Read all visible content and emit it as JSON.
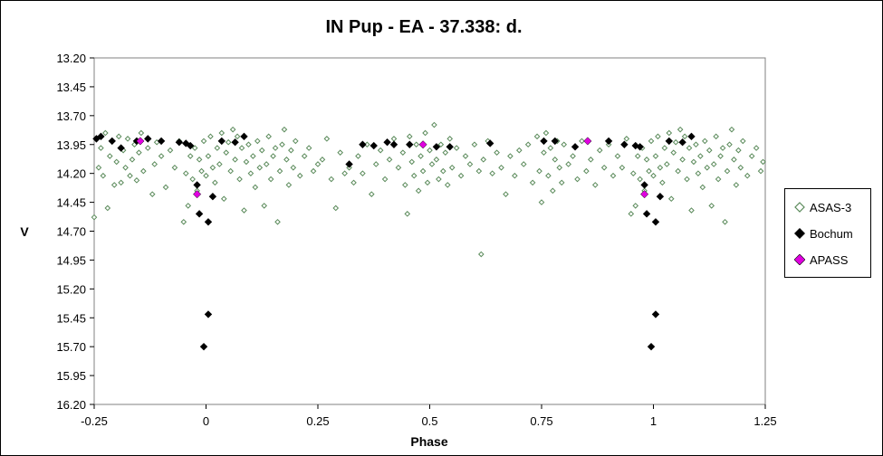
{
  "chart_data": {
    "type": "scatter",
    "title": "IN Pup - EA - 37.338: d.",
    "xlabel": "Phase",
    "ylabel": "V",
    "xlim": [
      -0.25,
      1.25
    ],
    "ylim": [
      16.2,
      13.2
    ],
    "y_inverted": true,
    "x_ticks": [
      "-0.25",
      "0",
      "0.25",
      "0.5",
      "0.75",
      "1",
      "1.25"
    ],
    "y_ticks": [
      "13.20",
      "13.45",
      "13.70",
      "13.95",
      "14.20",
      "14.45",
      "14.70",
      "14.95",
      "15.20",
      "15.45",
      "15.70",
      "15.95",
      "16.20"
    ],
    "grid": false,
    "legend_position": "right",
    "series": [
      {
        "name": "ASAS-3",
        "marker": "hollow-diamond",
        "color": "#5a8a5a",
        "points": [
          [
            -0.25,
            14.58
          ],
          [
            -0.24,
            14.15
          ],
          [
            -0.235,
            13.98
          ],
          [
            -0.23,
            14.22
          ],
          [
            -0.225,
            13.85
          ],
          [
            -0.22,
            14.5
          ],
          [
            -0.215,
            14.05
          ],
          [
            -0.21,
            13.92
          ],
          [
            -0.205,
            14.3
          ],
          [
            -0.2,
            14.1
          ],
          [
            -0.195,
            13.88
          ],
          [
            -0.19,
            14.28
          ],
          [
            -0.185,
            14.0
          ],
          [
            -0.18,
            14.15
          ],
          [
            -0.175,
            13.9
          ],
          [
            -0.17,
            14.22
          ],
          [
            -0.165,
            14.08
          ],
          [
            -0.16,
            13.95
          ],
          [
            -0.155,
            14.26
          ],
          [
            -0.15,
            14.02
          ],
          [
            -0.145,
            13.85
          ],
          [
            -0.14,
            14.18
          ],
          [
            -0.13,
            13.98
          ],
          [
            -0.12,
            14.38
          ],
          [
            -0.115,
            14.12
          ],
          [
            -0.11,
            13.93
          ],
          [
            -0.1,
            14.05
          ],
          [
            -0.09,
            14.32
          ],
          [
            -0.08,
            14.0
          ],
          [
            -0.07,
            14.15
          ],
          [
            -0.06,
            13.92
          ],
          [
            -0.05,
            14.62
          ],
          [
            -0.045,
            14.2
          ],
          [
            -0.04,
            14.48
          ],
          [
            -0.035,
            14.05
          ],
          [
            -0.03,
            14.25
          ],
          [
            -0.025,
            13.98
          ],
          [
            -0.02,
            14.35
          ],
          [
            -0.015,
            14.08
          ],
          [
            -0.01,
            14.18
          ],
          [
            -0.005,
            13.92
          ],
          [
            0.0,
            14.22
          ],
          [
            0.005,
            14.05
          ],
          [
            0.01,
            13.88
          ],
          [
            0.015,
            14.15
          ],
          [
            0.02,
            14.28
          ],
          [
            0.025,
            13.98
          ],
          [
            0.03,
            14.12
          ],
          [
            0.035,
            13.85
          ],
          [
            0.04,
            14.42
          ],
          [
            0.045,
            14.02
          ],
          [
            0.05,
            13.93
          ],
          [
            0.055,
            14.18
          ],
          [
            0.06,
            13.82
          ],
          [
            0.065,
            14.08
          ],
          [
            0.07,
            13.88
          ],
          [
            0.075,
            14.25
          ],
          [
            0.08,
            13.98
          ],
          [
            0.085,
            14.52
          ],
          [
            0.09,
            14.1
          ],
          [
            0.095,
            13.95
          ],
          [
            0.1,
            14.2
          ],
          [
            0.105,
            14.05
          ],
          [
            0.11,
            14.32
          ],
          [
            0.115,
            13.92
          ],
          [
            0.12,
            14.15
          ],
          [
            0.125,
            14.0
          ],
          [
            0.13,
            14.48
          ],
          [
            0.135,
            14.12
          ],
          [
            0.14,
            13.88
          ],
          [
            0.145,
            14.25
          ],
          [
            0.15,
            14.05
          ],
          [
            0.155,
            13.98
          ],
          [
            0.16,
            14.62
          ],
          [
            0.165,
            14.18
          ],
          [
            0.17,
            13.95
          ],
          [
            0.175,
            13.82
          ],
          [
            0.18,
            14.08
          ],
          [
            0.185,
            14.3
          ],
          [
            0.19,
            14.0
          ],
          [
            0.195,
            14.15
          ],
          [
            0.2,
            13.92
          ],
          [
            0.21,
            14.22
          ],
          [
            0.22,
            14.05
          ],
          [
            0.23,
            13.98
          ],
          [
            0.24,
            14.18
          ],
          [
            0.25,
            14.12
          ],
          [
            0.26,
            14.08
          ],
          [
            0.27,
            13.9
          ],
          [
            0.28,
            14.25
          ],
          [
            0.29,
            14.5
          ],
          [
            0.3,
            14.02
          ],
          [
            0.31,
            14.2
          ],
          [
            0.32,
            14.15
          ],
          [
            0.33,
            14.28
          ],
          [
            0.34,
            14.05
          ],
          [
            0.35,
            14.2
          ],
          [
            0.36,
            13.95
          ],
          [
            0.37,
            14.38
          ],
          [
            0.38,
            14.12
          ],
          [
            0.39,
            14.0
          ],
          [
            0.4,
            14.25
          ],
          [
            0.41,
            14.08
          ],
          [
            0.42,
            13.9
          ],
          [
            0.43,
            14.15
          ],
          [
            0.44,
            14.02
          ],
          [
            0.445,
            14.3
          ],
          [
            0.45,
            14.55
          ],
          [
            0.455,
            13.88
          ],
          [
            0.46,
            14.1
          ],
          [
            0.465,
            14.22
          ],
          [
            0.47,
            13.95
          ],
          [
            0.475,
            14.35
          ],
          [
            0.48,
            14.05
          ],
          [
            0.485,
            14.18
          ],
          [
            0.49,
            13.85
          ],
          [
            0.495,
            14.28
          ],
          [
            0.5,
            14.0
          ],
          [
            0.505,
            14.12
          ],
          [
            0.51,
            13.78
          ],
          [
            0.515,
            14.08
          ],
          [
            0.52,
            14.25
          ],
          [
            0.525,
            13.95
          ],
          [
            0.53,
            14.18
          ],
          [
            0.535,
            14.02
          ],
          [
            0.54,
            14.3
          ],
          [
            0.545,
            13.9
          ],
          [
            0.55,
            14.15
          ],
          [
            0.56,
            13.98
          ],
          [
            0.57,
            14.22
          ],
          [
            0.58,
            14.05
          ],
          [
            0.59,
            14.12
          ],
          [
            0.6,
            13.95
          ],
          [
            0.61,
            14.18
          ],
          [
            0.615,
            14.9
          ],
          [
            0.62,
            14.08
          ],
          [
            0.63,
            13.92
          ],
          [
            0.64,
            14.2
          ],
          [
            0.65,
            14.02
          ],
          [
            0.66,
            14.15
          ],
          [
            0.67,
            14.38
          ],
          [
            0.68,
            14.05
          ],
          [
            0.69,
            14.22
          ],
          [
            0.7,
            14.0
          ],
          [
            0.71,
            14.12
          ],
          [
            0.72,
            13.95
          ],
          [
            0.73,
            14.28
          ],
          [
            0.74,
            13.88
          ],
          [
            0.745,
            14.18
          ],
          [
            0.75,
            14.45
          ],
          [
            0.755,
            14.02
          ],
          [
            0.76,
            13.85
          ],
          [
            0.765,
            14.22
          ],
          [
            0.77,
            13.98
          ],
          [
            0.775,
            14.35
          ],
          [
            0.78,
            14.08
          ],
          [
            0.785,
            13.92
          ],
          [
            0.79,
            14.15
          ],
          [
            0.795,
            14.28
          ],
          [
            0.8,
            13.95
          ],
          [
            0.81,
            14.12
          ],
          [
            0.82,
            14.05
          ],
          [
            0.83,
            14.25
          ],
          [
            0.84,
            13.92
          ],
          [
            0.85,
            14.18
          ],
          [
            0.86,
            14.08
          ],
          [
            0.87,
            14.3
          ],
          [
            0.88,
            14.0
          ],
          [
            0.89,
            14.15
          ],
          [
            0.9,
            13.95
          ],
          [
            0.91,
            14.22
          ],
          [
            0.92,
            14.05
          ],
          [
            0.93,
            14.15
          ],
          [
            0.94,
            13.9
          ],
          [
            0.95,
            14.55
          ],
          [
            0.955,
            14.2
          ],
          [
            0.96,
            14.48
          ],
          [
            0.965,
            14.05
          ],
          [
            0.97,
            14.25
          ],
          [
            0.975,
            13.98
          ],
          [
            0.98,
            14.35
          ],
          [
            0.985,
            14.08
          ],
          [
            0.99,
            14.18
          ],
          [
            0.995,
            13.92
          ],
          [
            1.0,
            14.22
          ],
          [
            1.005,
            14.05
          ],
          [
            1.01,
            13.88
          ],
          [
            1.015,
            14.15
          ],
          [
            1.02,
            14.28
          ],
          [
            1.025,
            13.98
          ],
          [
            1.03,
            14.12
          ],
          [
            1.035,
            13.85
          ],
          [
            1.04,
            14.42
          ],
          [
            1.045,
            14.02
          ],
          [
            1.05,
            13.93
          ],
          [
            1.055,
            14.18
          ],
          [
            1.06,
            13.82
          ],
          [
            1.065,
            14.08
          ],
          [
            1.07,
            13.88
          ],
          [
            1.075,
            14.25
          ],
          [
            1.08,
            13.98
          ],
          [
            1.085,
            14.52
          ],
          [
            1.09,
            14.1
          ],
          [
            1.095,
            13.95
          ],
          [
            1.1,
            14.2
          ],
          [
            1.105,
            14.05
          ],
          [
            1.11,
            14.32
          ],
          [
            1.115,
            13.92
          ],
          [
            1.12,
            14.15
          ],
          [
            1.125,
            14.0
          ],
          [
            1.13,
            14.48
          ],
          [
            1.135,
            14.12
          ],
          [
            1.14,
            13.88
          ],
          [
            1.145,
            14.25
          ],
          [
            1.15,
            14.05
          ],
          [
            1.155,
            13.98
          ],
          [
            1.16,
            14.62
          ],
          [
            1.165,
            14.18
          ],
          [
            1.17,
            13.95
          ],
          [
            1.175,
            13.82
          ],
          [
            1.18,
            14.08
          ],
          [
            1.185,
            14.3
          ],
          [
            1.19,
            14.0
          ],
          [
            1.195,
            14.15
          ],
          [
            1.2,
            13.92
          ],
          [
            1.21,
            14.22
          ],
          [
            1.22,
            14.05
          ],
          [
            1.23,
            13.98
          ],
          [
            1.24,
            14.18
          ],
          [
            1.245,
            14.1
          ]
        ]
      },
      {
        "name": "Bochum",
        "marker": "filled-diamond",
        "color": "#000000",
        "points": [
          [
            -0.245,
            13.9
          ],
          [
            -0.235,
            13.88
          ],
          [
            -0.21,
            13.92
          ],
          [
            -0.19,
            13.98
          ],
          [
            -0.155,
            13.92
          ],
          [
            -0.13,
            13.9
          ],
          [
            -0.1,
            13.92
          ],
          [
            -0.06,
            13.93
          ],
          [
            -0.045,
            13.94
          ],
          [
            -0.035,
            13.96
          ],
          [
            -0.02,
            14.3
          ],
          [
            -0.015,
            14.55
          ],
          [
            0.015,
            14.4
          ],
          [
            0.005,
            14.62
          ],
          [
            0.035,
            13.92
          ],
          [
            0.065,
            13.93
          ],
          [
            0.085,
            13.88
          ],
          [
            0.32,
            14.12
          ],
          [
            0.35,
            13.95
          ],
          [
            0.375,
            13.96
          ],
          [
            0.405,
            13.93
          ],
          [
            0.42,
            13.95
          ],
          [
            0.455,
            13.95
          ],
          [
            0.515,
            13.97
          ],
          [
            0.545,
            13.97
          ],
          [
            0.635,
            13.94
          ],
          [
            0.755,
            13.92
          ],
          [
            0.78,
            13.92
          ],
          [
            0.825,
            13.97
          ],
          [
            0.9,
            13.92
          ],
          [
            0.935,
            13.95
          ],
          [
            0.96,
            13.96
          ],
          [
            0.97,
            13.97
          ],
          [
            0.98,
            14.3
          ],
          [
            0.985,
            14.55
          ],
          [
            1.015,
            14.4
          ],
          [
            1.005,
            14.62
          ],
          [
            1.035,
            13.92
          ],
          [
            1.065,
            13.93
          ],
          [
            1.085,
            13.88
          ],
          [
            -0.005,
            15.7
          ],
          [
            0.005,
            15.42
          ],
          [
            0.995,
            15.7
          ],
          [
            1.005,
            15.42
          ]
        ]
      },
      {
        "name": "APASS",
        "marker": "filled-diamond",
        "color": "#e000e0",
        "points": [
          [
            -0.147,
            13.92
          ],
          [
            -0.02,
            14.38
          ],
          [
            0.485,
            13.95
          ],
          [
            0.853,
            13.92
          ],
          [
            0.98,
            14.38
          ]
        ]
      }
    ]
  }
}
